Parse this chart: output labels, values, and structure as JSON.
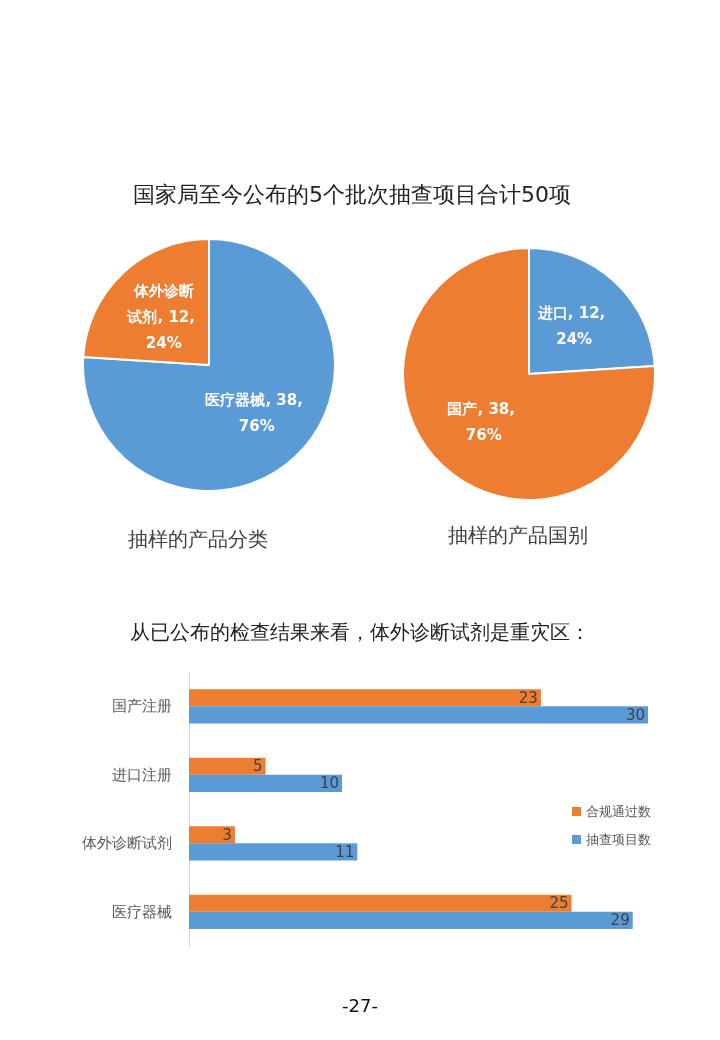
{
  "chart_data": [
    {
      "type": "pie",
      "title": "抽样的产品分类",
      "annotations": [
        "国家局至今公布的5个批次抽查项目合计50项"
      ],
      "categories": [
        "医疗器械",
        "体外诊断试剂"
      ],
      "values": [
        38,
        12
      ],
      "colors": [
        "#5b9bd5",
        "#ed7d31"
      ],
      "value_labels": [
        "38, 76%",
        "12, 24%"
      ]
    },
    {
      "type": "pie",
      "title": "抽样的产品国别",
      "categories": [
        "进口",
        "国产"
      ],
      "values": [
        12,
        38
      ],
      "colors": [
        "#5b9bd5",
        "#ed7d31"
      ],
      "value_labels": [
        "12, 24%",
        "38, 76%"
      ]
    },
    {
      "type": "bar",
      "orientation": "horizontal",
      "title": "从已公布的检查结果来看，体外诊断试剂是重灾区：",
      "annotations": [
        "-27-"
      ],
      "categories": [
        "国产注册",
        "进口注册",
        "体外诊断试剂",
        "医疗器械"
      ],
      "series": [
        {
          "name": "合规通过数",
          "color": "#ed7d31",
          "values": [
            23,
            5,
            3,
            25
          ]
        },
        {
          "name": "抽查项目数",
          "color": "#5b9bd5",
          "values": [
            30,
            10,
            11,
            29
          ]
        }
      ],
      "data_labels": true,
      "legend": "right",
      "tick_labels": "y"
    }
  ]
}
